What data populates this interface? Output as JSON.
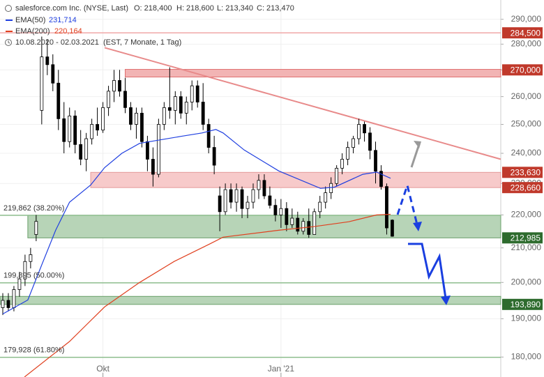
{
  "chart_data": {
    "type": "candlestick",
    "title": "salesforce.com Inc. (NYSE, Last)",
    "ohlc_labels": [
      "O: 218,400",
      "H: 218,600",
      "L: 213,340",
      "C: 213,470"
    ],
    "period": "10.08.2020 - 02.03.2021",
    "period_note": "(EST, 7 Monate, 1 Tag)",
    "log_scale": true,
    "grid": true,
    "ylim": [
      175,
      298
    ],
    "yticks": [
      {
        "value": 180,
        "label": "180,000"
      },
      {
        "value": 190,
        "label": "190,000"
      },
      {
        "value": 200,
        "label": "200,000"
      },
      {
        "value": 210,
        "label": "210,000"
      },
      {
        "value": 220,
        "label": "220,000"
      },
      {
        "value": 230,
        "label": "230,000"
      },
      {
        "value": 240,
        "label": "240,000"
      },
      {
        "value": 250,
        "label": "250,000"
      },
      {
        "value": 260,
        "label": "260,000"
      },
      {
        "value": 270,
        "label": "270,000"
      },
      {
        "value": 280,
        "label": "280,000"
      },
      {
        "value": 290,
        "label": "290,000"
      }
    ],
    "xlim": [
      -0.5,
      89.5
    ],
    "xticks": [
      {
        "value": 18,
        "label": "Okt"
      },
      {
        "value": 50,
        "label": "Jan '21"
      }
    ],
    "up_color": "#ffffff",
    "down_color": "#000000",
    "open": [
      193,
      195,
      193,
      198,
      201,
      206,
      214,
      255,
      275,
      272,
      265,
      252,
      244,
      253,
      243,
      238,
      245,
      250,
      248,
      256,
      262,
      266,
      262,
      256,
      250,
      254,
      244,
      238,
      233,
      250,
      256,
      255,
      260,
      254,
      258,
      264,
      258,
      250,
      242,
      226,
      221,
      228,
      224,
      228,
      222,
      224,
      228,
      231,
      226,
      223,
      220,
      222,
      217,
      219,
      215,
      218,
      214,
      221,
      224,
      227,
      230,
      235,
      238,
      242,
      245,
      250,
      247,
      241,
      234,
      229,
      218.4
    ],
    "high": [
      197,
      197,
      199,
      203,
      208,
      210,
      220,
      283,
      282,
      276,
      270,
      258,
      256,
      255,
      248,
      247,
      252,
      256,
      258,
      264,
      270,
      270,
      267,
      258,
      256,
      256,
      246,
      242,
      252,
      258,
      271,
      262,
      262,
      260,
      266,
      266,
      265,
      252,
      246,
      229,
      230,
      230,
      230,
      229,
      226,
      230,
      233,
      233,
      229,
      225,
      225,
      224,
      222,
      221,
      219,
      222,
      222,
      226,
      229,
      232,
      236,
      240,
      244,
      246,
      252,
      251,
      249,
      244,
      236,
      230,
      218.6
    ],
    "low": [
      191,
      192,
      192,
      196,
      199,
      204,
      212,
      250,
      268,
      262,
      248,
      240,
      242,
      240,
      236,
      234,
      243,
      246,
      247,
      253,
      258,
      260,
      254,
      248,
      245,
      242,
      234,
      229,
      232,
      248,
      252,
      250,
      252,
      250,
      255,
      256,
      248,
      240,
      233,
      215,
      220,
      222,
      221,
      219,
      219,
      222,
      225,
      225,
      222,
      218,
      216,
      215,
      216,
      214,
      214,
      213,
      214,
      219,
      222,
      225,
      229,
      233,
      236,
      240,
      243,
      244,
      238,
      230,
      228,
      214,
      213.34
    ],
    "close": [
      195,
      193,
      198,
      201,
      206,
      208,
      218,
      275,
      272,
      265,
      252,
      244,
      253,
      243,
      238,
      245,
      250,
      248,
      256,
      262,
      266,
      262,
      256,
      250,
      254,
      244,
      238,
      233,
      250,
      256,
      255,
      260,
      254,
      258,
      264,
      258,
      250,
      242,
      236,
      221,
      228,
      224,
      228,
      222,
      224,
      228,
      231,
      226,
      223,
      220,
      222,
      217,
      219,
      215,
      218,
      214,
      221,
      224,
      227,
      230,
      235,
      238,
      242,
      245,
      250,
      247,
      241,
      234,
      229,
      216,
      213.47
    ],
    "series": [
      {
        "name": "EMA(50)",
        "last_label": "231,714",
        "color": "#1f3fe0",
        "x": [
          0,
          4.5,
          7,
          9.5,
          12,
          15.8,
          18.3,
          21.4,
          24.6,
          28.3,
          32,
          35.8,
          38.3,
          39.6,
          43.4,
          49.6,
          57.1,
          59.6,
          64.7,
          67.2,
          69.7
        ],
        "values": [
          191.3,
          195.1,
          205,
          215.3,
          224,
          229.5,
          235.2,
          240,
          243.4,
          244.6,
          245.8,
          247,
          248.2,
          247,
          241.1,
          234.1,
          228.4,
          228.8,
          233,
          233.7,
          231.7
        ]
      },
      {
        "name": "EMA(200)",
        "last_label": "220,164",
        "color": "#e0401f",
        "x": [
          3.9,
          12,
          18.3,
          24.6,
          30.8,
          37.1,
          39.6,
          49.6,
          55.9,
          62.2,
          67.2,
          69.7
        ],
        "values": [
          175,
          184,
          193.2,
          200,
          206,
          211.1,
          213.2,
          215.3,
          216.4,
          217.9,
          220,
          220.2
        ]
      }
    ],
    "trendline": {
      "color": "#e88a8a",
      "x": [
        18.3,
        89.5
      ],
      "values": [
        278.6,
        238
      ]
    },
    "hlines": [
      {
        "value": 284.5,
        "label": "284,500",
        "side": "right",
        "color": "#f0a8a8",
        "tag_color": "#c0392b"
      },
      {
        "value": 219.862,
        "label": "219,862 (38.20%)",
        "side": "left",
        "color": "#8fbf8f"
      },
      {
        "value": 199.895,
        "label": "199,895 (50.00%)",
        "side": "left",
        "color": "#8fbf8f"
      },
      {
        "value": 179.928,
        "label": "179,928 (61.80%)",
        "side": "left",
        "color": "#8fbf8f"
      }
    ],
    "zones": [
      {
        "low": 267.3,
        "high": 270.2,
        "start": 22,
        "color": "#f2b4b4",
        "border": "#e07070",
        "tag_color": "#c0392b",
        "tags": [
          {
            "value": 270,
            "label": "270,000"
          }
        ]
      },
      {
        "low": 228.66,
        "high": 233.63,
        "start": 15.8,
        "color": "#f7caca",
        "border": "#e49a9a",
        "tag_color": "#c0392b",
        "tags": [
          {
            "value": 233.63,
            "label": "233,630"
          },
          {
            "value": 228.66,
            "label": "228,660"
          }
        ]
      },
      {
        "low": 212.985,
        "high": 219.862,
        "start": 4.5,
        "color": "#b7d4b7",
        "border": "#6a9f6a",
        "tag_color": "#2e6b2e",
        "tags": [
          {
            "value": 212.985,
            "label": "212,985"
          }
        ]
      },
      {
        "low": 193.89,
        "high": 196.1,
        "start": -0.5,
        "color": "#b7d4b7",
        "border": "#6a9f6a",
        "tag_color": "#2e6b2e",
        "tags": [
          {
            "value": 193.89,
            "label": "193,890"
          }
        ]
      }
    ]
  }
}
